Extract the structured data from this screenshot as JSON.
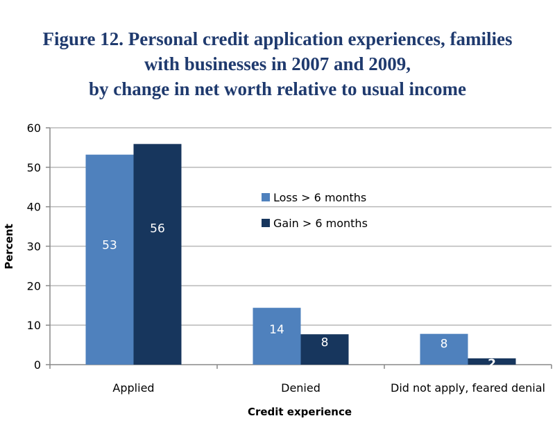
{
  "title_lines": [
    "Figure 12.  Personal credit application experiences, families",
    "with businesses in 2007 and 2009,",
    "by change in net worth relative to usual income"
  ],
  "chart_data": {
    "type": "bar",
    "title": "Figure 12.  Personal credit application experiences, families with businesses in 2007 and 2009, by change in net worth relative to usual income",
    "xlabel": "Credit experience",
    "ylabel": "Percent",
    "ylim": [
      0,
      60
    ],
    "yticks": [
      "0",
      "10",
      "20",
      "30",
      "40",
      "50",
      "60"
    ],
    "grid": true,
    "legend_position": "center",
    "categories": [
      "Applied",
      "Denied",
      "Did not apply, feared denial"
    ],
    "series": [
      {
        "name": "Loss > 6 months",
        "color": "#4f81bd",
        "values": [
          53.2,
          14.4,
          7.8
        ],
        "labels": [
          "53",
          "14",
          "8"
        ]
      },
      {
        "name": "Gain > 6 months",
        "color": "#17365d",
        "values": [
          55.9,
          7.7,
          1.6
        ],
        "labels": [
          "56",
          "8",
          "2"
        ]
      }
    ]
  }
}
